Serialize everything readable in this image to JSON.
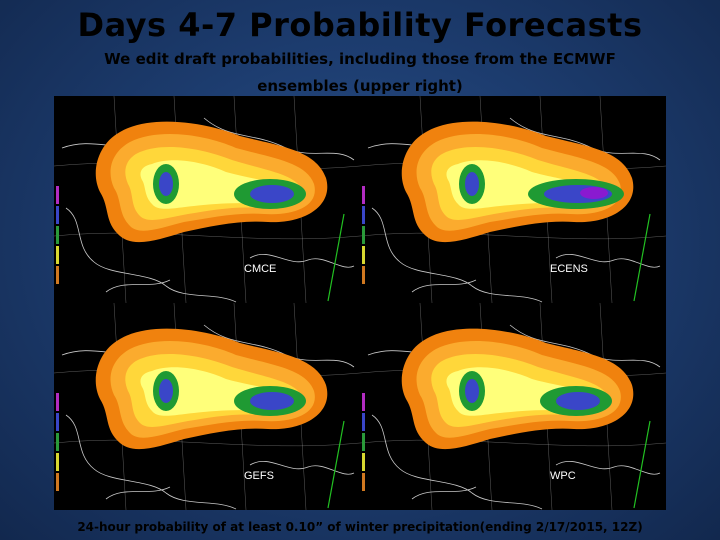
{
  "slide": {
    "title": "Days 4-7 Probability Forecasts",
    "subtitle_line1": "We edit draft probabilities, including those from the ECMWF",
    "subtitle_line2": "ensembles (upper right)",
    "caption": "24-hour probability of at least 0.10” of winter precipitation(ending 2/17/2015, 12Z)"
  },
  "panels": [
    {
      "label": "CMCE",
      "intensity": 1
    },
    {
      "label": "ECENS",
      "intensity": 2
    },
    {
      "label": "GEFS",
      "intensity": 1
    },
    {
      "label": "WPC",
      "intensity": 1
    }
  ],
  "colors": {
    "band_outer": "#f0820e",
    "band_1": "#fbab2e",
    "band_2": "#ffd73a",
    "band_3": "#ffff7a",
    "band_4": "#1f9a33",
    "band_5": "#3a46c8",
    "band_6": "#8a1ad0",
    "map_lines": "#c9c9c9",
    "colorbar": [
      "#b22cc2",
      "#3a46c8",
      "#2a9a3a",
      "#d8d830",
      "#d07820"
    ],
    "border_line": "#22c022"
  }
}
